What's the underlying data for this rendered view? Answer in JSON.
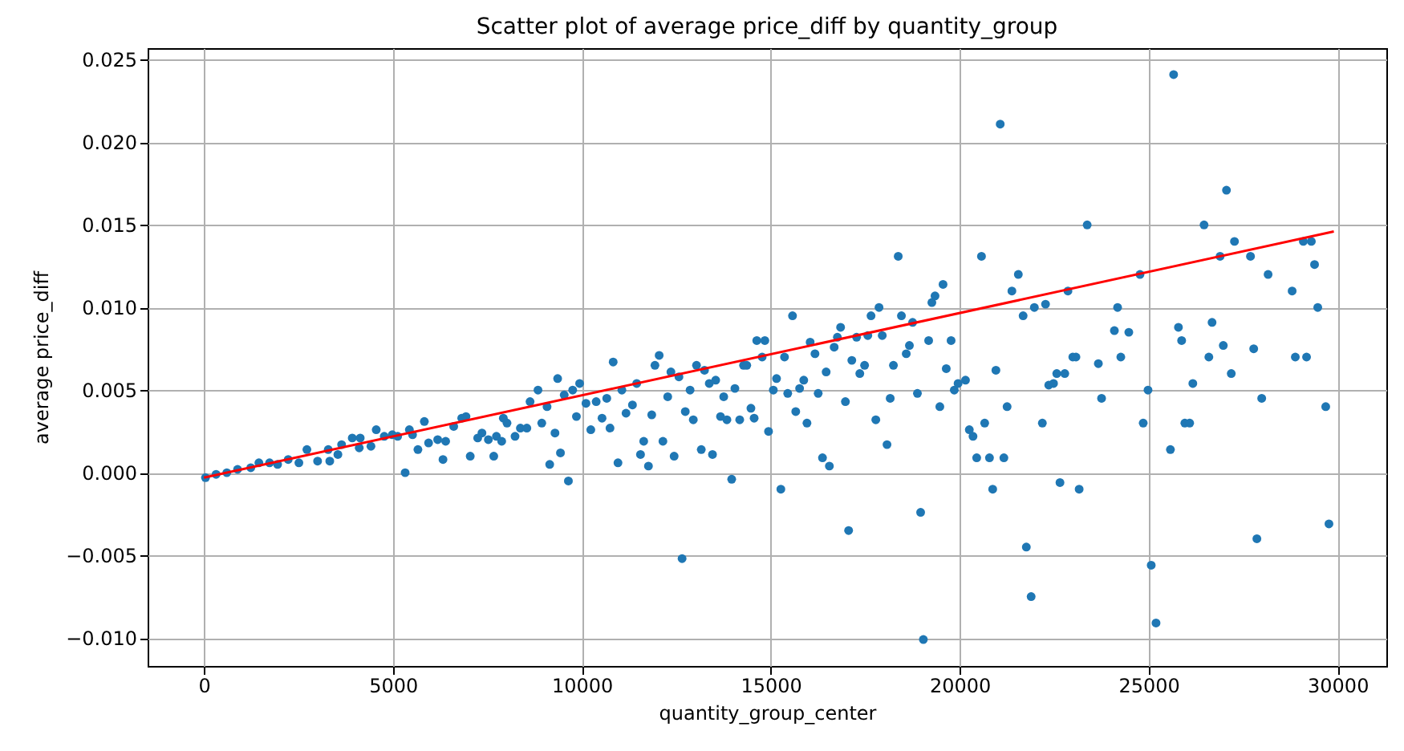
{
  "chart_data": {
    "type": "scatter",
    "title": "Scatter plot of average price_diff by quantity_group",
    "xlabel": "quantity_group_center",
    "ylabel": "average price_diff",
    "xlim": [
      -1490,
      31290
    ],
    "ylim": [
      -0.0117,
      0.0257
    ],
    "xticks": [
      0,
      5000,
      10000,
      15000,
      20000,
      25000,
      30000
    ],
    "yticks": [
      {
        "value": -0.01,
        "label": "−0.010"
      },
      {
        "value": -0.005,
        "label": "−0.005"
      },
      {
        "value": 0,
        "label": "0.000"
      },
      {
        "value": 0.005,
        "label": "0.005"
      },
      {
        "value": 0.01,
        "label": "0.010"
      },
      {
        "value": 0.015,
        "label": "0.015"
      },
      {
        "value": 0.02,
        "label": "0.020"
      },
      {
        "value": 0.025,
        "label": "0.025"
      }
    ],
    "grid": true,
    "series": [
      {
        "marker": "circle",
        "color": "#1f77b4",
        "x": [
          42,
          322,
          606,
          890,
          1240,
          1455,
          1737,
          1950,
          2230,
          2513,
          2725,
          3008,
          3290,
          3330,
          3545,
          3643,
          3925,
          4136,
          4110,
          4420,
          4560,
          4772,
          4985,
          5127,
          5325,
          5437,
          5521,
          5663,
          5833,
          5945,
          6186,
          6326,
          6397,
          6610,
          6822,
          6935,
          7047,
          7245,
          7357,
          7527,
          7670,
          7740,
          7880,
          7923,
          8020,
          8233,
          8375,
          8545,
          8630,
          8840,
          8940,
          9080,
          9150,
          9290,
          9360,
          9435,
          9645,
          9534,
          9758,
          9857,
          9942,
          10110,
          10238,
          10380,
          10535,
          10660,
          10746,
          10830,
          10957,
          11060,
          11170,
          11340,
          11453,
          11553,
          11638,
          11763,
          11850,
          11935,
          12047,
          12146,
          12273,
          12358,
          12443,
          12570,
          12653,
          12738,
          12865,
          12950,
          13035,
          13161,
          13246,
          13373,
          13458,
          13543,
          13670,
          13755,
          13839,
          13966,
          14051,
          14178,
          14280,
          14365,
          14475,
          14560,
          14630,
          14843,
          14772,
          14941,
          15068,
          15153,
          15267,
          15364,
          15449,
          15576,
          15661,
          15763,
          15873,
          15958,
          16043,
          16170,
          16255,
          16369,
          16466,
          16551,
          16678,
          16763,
          16848,
          16975,
          17060,
          17145,
          17271,
          17356,
          17483,
          17568,
          17653,
          17780,
          17865,
          17950,
          18076,
          18161,
          18246,
          18373,
          18458,
          18585,
          18669,
          18754,
          18881,
          18966,
          19038,
          19178,
          19263,
          19347,
          19474,
          19559,
          19644,
          19772,
          19856,
          19957,
          20153,
          20254,
          20352,
          20449,
          20576,
          20661,
          20788,
          20873,
          20958,
          21072,
          21169,
          21254,
          21381,
          21551,
          21678,
          21763,
          21890,
          21975,
          22187,
          22271,
          22356,
          22483,
          22568,
          22653,
          22780,
          22864,
          22992,
          23076,
          23161,
          23373,
          23669,
          23754,
          24093,
          24178,
          24263,
          24475,
          24771,
          24856,
          24983,
          25068,
          25195,
          25576,
          25661,
          25788,
          25873,
          25958,
          26085,
          26169,
          26466,
          26593,
          26678,
          26890,
          26975,
          27059,
          27186,
          27271,
          27695,
          27780,
          27864,
          27992,
          28161,
          28797,
          28881,
          29093,
          29178,
          29305,
          29390,
          29475,
          29686,
          29771
        ],
        "values": [
          -0.0003,
          -0.0001,
          0.0,
          0.0002,
          0.0003,
          0.0006,
          0.0006,
          0.0005,
          0.0008,
          0.0006,
          0.0014,
          0.0007,
          0.0014,
          0.0007,
          0.0011,
          0.0017,
          0.0021,
          0.0021,
          0.0015,
          0.0016,
          0.0026,
          0.0022,
          0.0023,
          0.0022,
          0.0,
          0.0026,
          0.0023,
          0.0014,
          0.0031,
          0.0018,
          0.002,
          0.0008,
          0.0019,
          0.0028,
          0.0033,
          0.0034,
          0.001,
          0.0021,
          0.0024,
          0.002,
          0.001,
          0.0022,
          0.0019,
          0.0033,
          0.003,
          0.0022,
          0.0027,
          0.0027,
          0.0043,
          0.005,
          0.003,
          0.004,
          0.0005,
          0.0024,
          0.0057,
          0.0012,
          -0.0005,
          0.0047,
          0.005,
          0.0034,
          0.0054,
          0.0042,
          0.0026,
          0.0043,
          0.0033,
          0.0045,
          0.0027,
          0.0067,
          0.0006,
          0.005,
          0.0036,
          0.0041,
          0.0054,
          0.0011,
          0.0019,
          0.0004,
          0.0035,
          0.0065,
          0.0071,
          0.0019,
          0.0046,
          0.0061,
          0.001,
          0.0058,
          -0.0052,
          0.0037,
          0.005,
          0.0032,
          0.0065,
          0.0014,
          0.0062,
          0.0054,
          0.0011,
          0.0056,
          0.0034,
          0.0046,
          0.0032,
          -0.0004,
          0.0051,
          0.0032,
          0.0065,
          0.0065,
          0.0039,
          0.0033,
          0.008,
          0.008,
          0.007,
          0.0025,
          0.005,
          0.0057,
          -0.001,
          0.007,
          0.0048,
          0.0095,
          0.0037,
          0.0051,
          0.0056,
          0.003,
          0.0079,
          0.0072,
          0.0048,
          0.0009,
          0.0061,
          0.0004,
          0.0076,
          0.0082,
          0.0088,
          0.0043,
          -0.0035,
          0.0068,
          0.0082,
          0.006,
          0.0065,
          0.0083,
          0.0095,
          0.0032,
          0.01,
          0.0083,
          0.0017,
          0.0045,
          0.0065,
          0.0131,
          0.0095,
          0.0072,
          0.0077,
          0.0091,
          0.0048,
          -0.0024,
          -0.0101,
          0.008,
          0.0103,
          0.0107,
          0.004,
          0.0114,
          0.0063,
          0.008,
          0.005,
          0.0054,
          0.0056,
          0.0026,
          0.0022,
          0.0009,
          0.0131,
          0.003,
          0.0009,
          -0.001,
          0.0062,
          0.0211,
          0.0009,
          0.004,
          0.011,
          0.012,
          0.0095,
          -0.0045,
          -0.0075,
          0.01,
          0.003,
          0.0102,
          0.0053,
          0.0054,
          0.006,
          -0.0006,
          0.006,
          0.011,
          0.007,
          0.007,
          -0.001,
          0.015,
          0.0066,
          0.0045,
          0.0086,
          0.01,
          0.007,
          0.0085,
          0.012,
          0.003,
          0.005,
          -0.0056,
          -0.0091,
          0.0014,
          0.0241,
          0.0088,
          0.008,
          0.003,
          0.003,
          0.0054,
          0.015,
          0.007,
          0.0091,
          0.0131,
          0.0077,
          0.0171,
          0.006,
          0.014,
          0.0131,
          0.0075,
          -0.004,
          0.0045,
          0.012,
          0.011,
          0.007,
          0.014,
          0.007,
          0.014,
          0.0126,
          0.01,
          0.004,
          -0.0031
        ]
      },
      {
        "type": "line",
        "marker": "none",
        "color": "#ff0000",
        "x": [
          0,
          29900
        ],
        "values": [
          -0.0003,
          0.0146
        ]
      }
    ]
  }
}
